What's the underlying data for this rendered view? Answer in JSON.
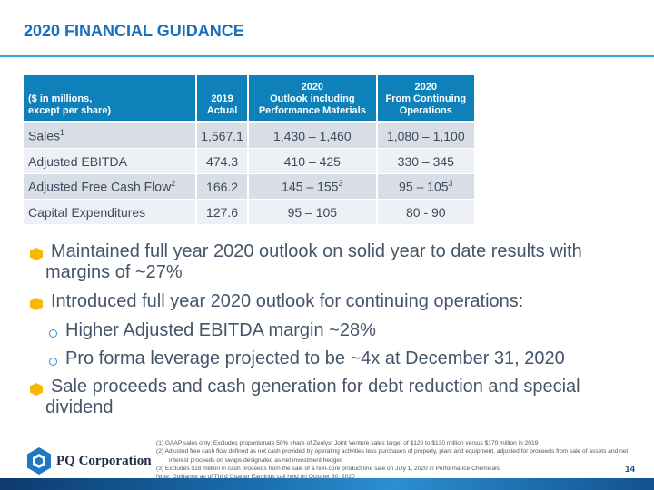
{
  "title": "2020 FINANCIAL GUIDANCE",
  "table": {
    "headers": [
      [
        "($ in millions,",
        "except per share)"
      ],
      [
        "2019",
        "Actual"
      ],
      [
        "2020",
        "Outlook including",
        "Performance Materials"
      ],
      [
        "2020",
        "From Continuing",
        "Operations"
      ]
    ],
    "rows": [
      {
        "label": "Sales",
        "sup": "1",
        "c1": "1,567.1",
        "c2": "1,430 – 1,460",
        "c2sup": "",
        "c3": "1,080 – 1,100",
        "c3sup": ""
      },
      {
        "label": "Adjusted EBITDA",
        "sup": "",
        "c1": "474.3",
        "c2": "410 – 425",
        "c2sup": "",
        "c3": "330 – 345",
        "c3sup": ""
      },
      {
        "label": "Adjusted Free Cash Flow",
        "sup": "2",
        "c1": "166.2",
        "c2": "145 – 155",
        "c2sup": "3",
        "c3": "95 – 105",
        "c3sup": "3"
      },
      {
        "label": "Capital Expenditures",
        "sup": "",
        "c1": "127.6",
        "c2": "95 – 105",
        "c2sup": "",
        "c3": "80 - 90",
        "c3sup": ""
      }
    ]
  },
  "bullets": {
    "b1a": "Maintained full year 2020 outlook on solid year to date results with",
    "b1b": "margins of ~27%",
    "b2": "Introduced full year 2020 outlook for continuing operations:",
    "s1": "Higher Adjusted EBITDA margin ~28%",
    "s2": "Pro forma leverage projected to be ~4x at December 31, 2020",
    "b3a": "Sale proceeds and cash generation for debt reduction and special",
    "b3b": "dividend"
  },
  "footnotes": [
    "(1)  GAAP sales only; Excludes proportionate 50% share of Zeolyst Joint Venture sales target of $120 to $130 million versus $170 million in 2019",
    "(2)  Adjusted free cash flow defined as net cash provided by operating activities less purchases of property, plant and equipment, adjusted for proceeds from sale of assets and net interest proceeds on swaps designated as net investment hedges",
    "(3)  Excludes $18 million in cash proceeds from the sale of a non-core product line sale on July 1, 2020 in Performance Chemicals",
    "Note: Guidance as of Third Quarter Earnings call held on October 30, 2020"
  ],
  "logo": "PQ Corporation",
  "page_number": "14"
}
